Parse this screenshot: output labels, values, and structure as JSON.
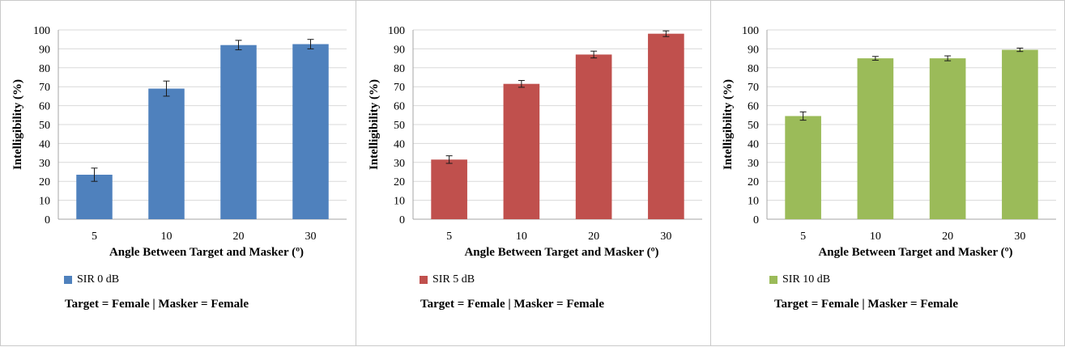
{
  "chart_data": [
    {
      "type": "bar",
      "categories": [
        "5",
        "10",
        "20",
        "30"
      ],
      "series": [
        {
          "name": "SIR 0 dB",
          "values": [
            23.5,
            69,
            92,
            92.5
          ],
          "errors": [
            3.5,
            4,
            2.5,
            2.5
          ]
        }
      ],
      "xlabel": "Angle Between Target and Masker (º)",
      "ylabel": "Intelligibility (%)",
      "ylim": [
        0,
        100
      ],
      "yticks": [
        "0",
        "10",
        "20",
        "30",
        "40",
        "50",
        "60",
        "70",
        "80",
        "90",
        "100"
      ],
      "grid": true,
      "legend": "bottom-left",
      "color": "#4f81bd",
      "caption": "Target = Female | Masker = Female"
    },
    {
      "type": "bar",
      "categories": [
        "5",
        "10",
        "20",
        "30"
      ],
      "series": [
        {
          "name": "SIR 5 dB",
          "values": [
            31.5,
            71.5,
            87,
            98
          ],
          "errors": [
            2,
            1.8,
            1.8,
            1.5
          ]
        }
      ],
      "xlabel": "Angle Between Target and Masker (º)",
      "ylabel": "Intelligibility (%)",
      "ylim": [
        0,
        100
      ],
      "yticks": [
        "0",
        "10",
        "20",
        "30",
        "40",
        "50",
        "60",
        "70",
        "80",
        "90",
        "100"
      ],
      "grid": true,
      "legend": "bottom-left",
      "color": "#c0504d",
      "caption": "Target = Female | Masker = Female"
    },
    {
      "type": "bar",
      "categories": [
        "5",
        "10",
        "20",
        "30"
      ],
      "series": [
        {
          "name": "SIR 10 dB",
          "values": [
            54.5,
            85,
            85,
            89.5
          ],
          "errors": [
            2.2,
            1,
            1.3,
            0.9
          ]
        }
      ],
      "xlabel": "Angle Between Target and Masker (º)",
      "ylabel": "Intelligibility (%)",
      "ylim": [
        0,
        100
      ],
      "yticks": [
        "0",
        "10",
        "20",
        "30",
        "40",
        "50",
        "60",
        "70",
        "80",
        "90",
        "100"
      ],
      "grid": true,
      "legend": "bottom-left",
      "color": "#9bbb59",
      "caption": "Target = Female | Masker = Female"
    }
  ]
}
